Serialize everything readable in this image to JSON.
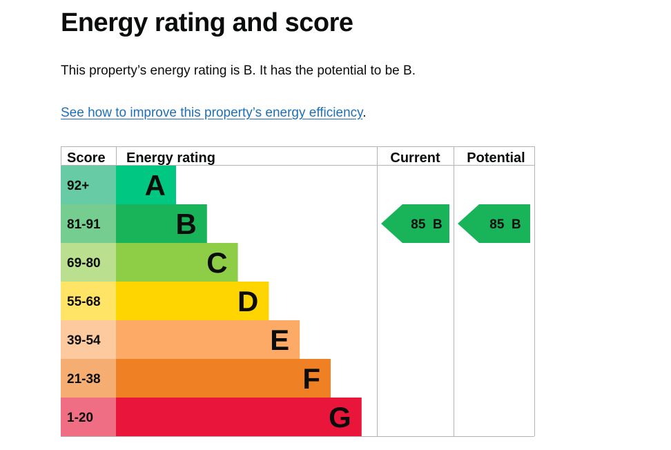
{
  "page": {
    "title": "Energy rating and score",
    "intro": "This property’s energy rating is B. It has the potential to be B.",
    "link_text": "See how to improve this property’s energy efficiency",
    "link_suffix": "."
  },
  "chart_data": {
    "type": "bar",
    "headers": {
      "score": "Score",
      "rating": "Energy rating",
      "current": "Current",
      "potential": "Potential"
    },
    "bands": [
      {
        "letter": "A",
        "score": "92+",
        "color": "#00c781",
        "score_color": "#67cba6"
      },
      {
        "letter": "B",
        "score": "81-91",
        "color": "#19b459",
        "score_color": "#75cd8f"
      },
      {
        "letter": "C",
        "score": "69-80",
        "color": "#8dce46",
        "score_color": "#b9df8f"
      },
      {
        "letter": "D",
        "score": "55-68",
        "color": "#ffd500",
        "score_color": "#ffe466"
      },
      {
        "letter": "E",
        "score": "39-54",
        "color": "#fcaa65",
        "score_color": "#fdcaa0"
      },
      {
        "letter": "F",
        "score": "21-38",
        "color": "#ef8023",
        "score_color": "#f5ad71"
      },
      {
        "letter": "G",
        "score": "1-20",
        "color": "#e9153b",
        "score_color": "#f06e84"
      }
    ],
    "current": {
      "value": 85,
      "letter": "B",
      "label": "85 B",
      "color": "#19b459"
    },
    "potential": {
      "value": 85,
      "letter": "B",
      "label": "85 B",
      "color": "#19b459"
    }
  }
}
